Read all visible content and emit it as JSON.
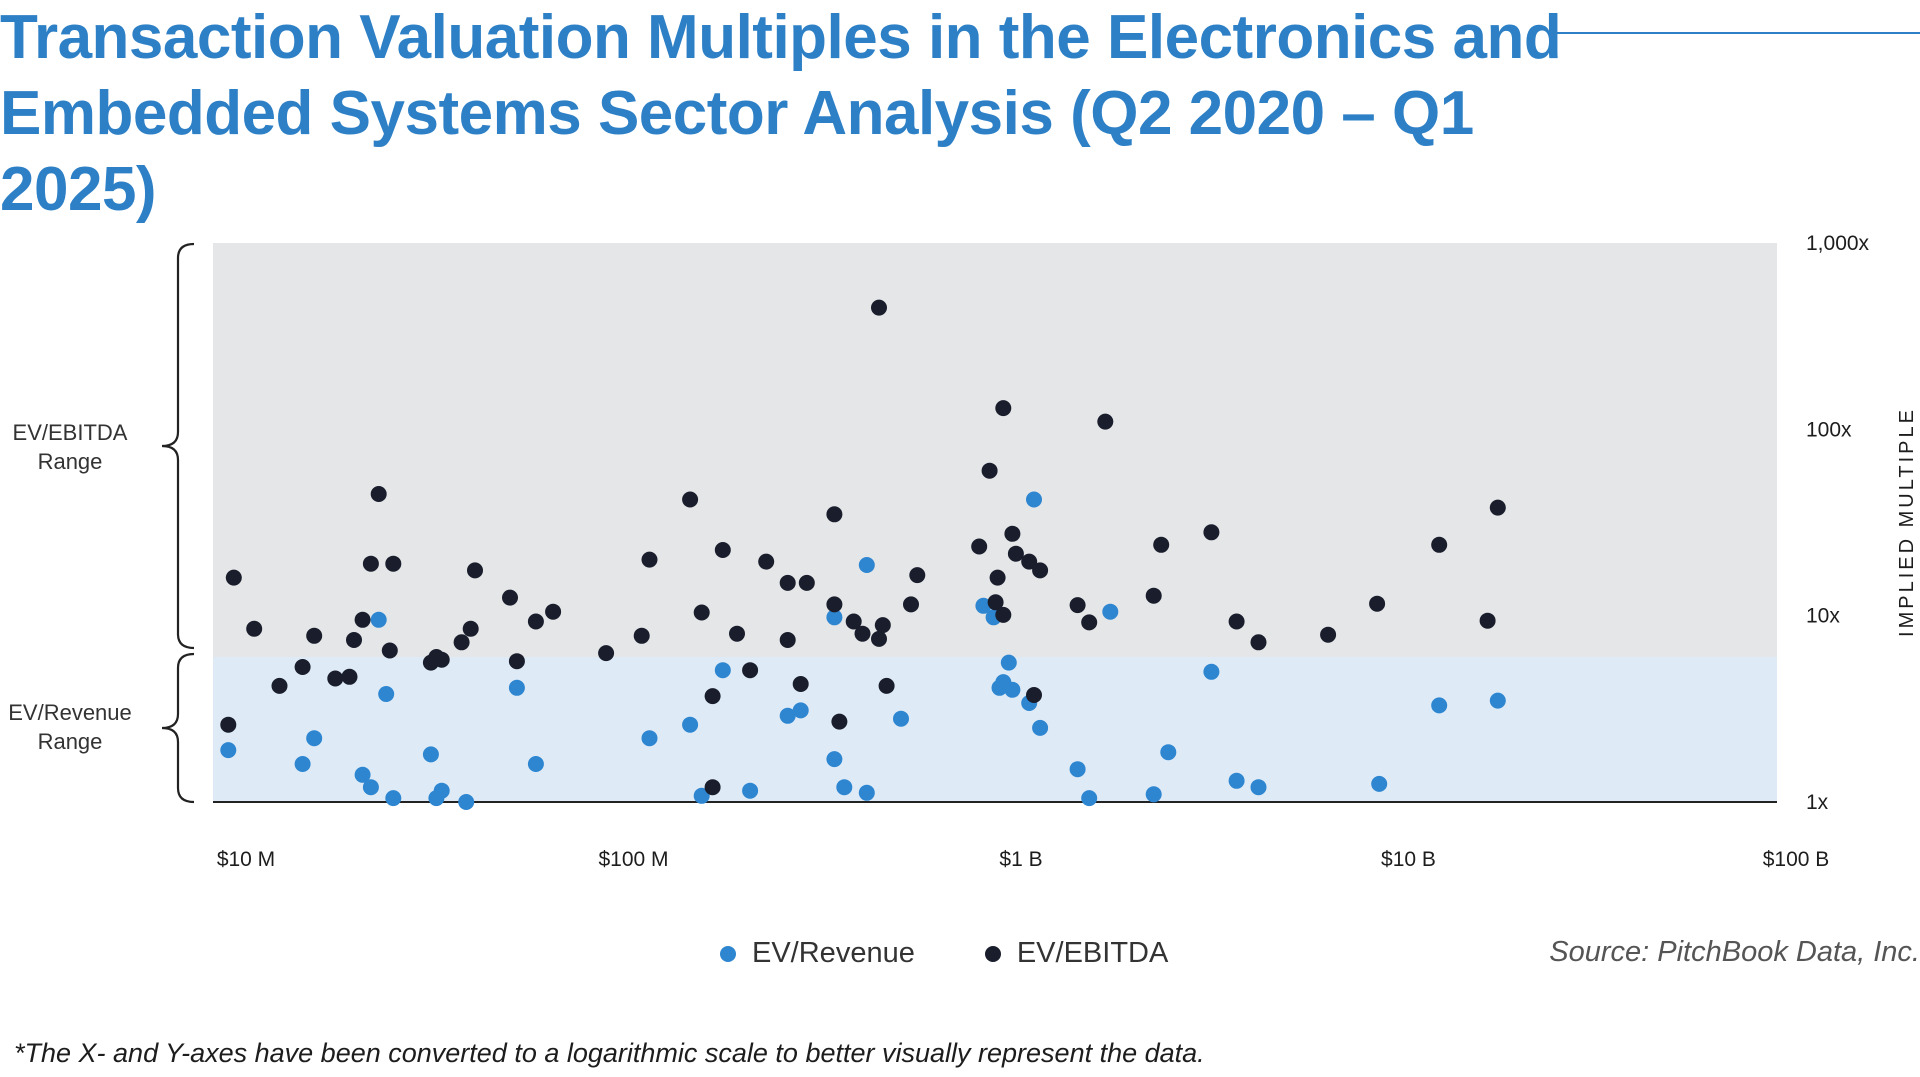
{
  "title": "Transaction Valuation Multiples in the Electronics and Embedded Systems Sector Analysis (Q2 2020 – Q1 2025)",
  "left_labels": {
    "ebitda_range": [
      "EV/EBITDA",
      "Range"
    ],
    "revenue_range": [
      "EV/Revenue",
      "Range"
    ]
  },
  "legend": {
    "revenue": "EV/Revenue",
    "ebitda": "EV/EBITDA"
  },
  "source": "Source: PitchBook Data, Inc.",
  "footnote": "*The X- and Y-axes have been converted to a logarithmic scale to better visually represent the data.",
  "colors": {
    "title": "#2E80C6",
    "revenue": "#2E86D1",
    "ebitda": "#1A1E2C",
    "ebitda_band": "#E5E6E8",
    "revenue_band": "#DEEBF7"
  },
  "chart_data": {
    "type": "scatter",
    "x_scale": "log",
    "y_scale": "log",
    "xlim": [
      10000000,
      100000000000
    ],
    "ylim": [
      1,
      1000
    ],
    "x_ticks": [
      {
        "value": 10000000,
        "label": "$10 M"
      },
      {
        "value": 100000000,
        "label": "$100 M"
      },
      {
        "value": 1000000000,
        "label": "$1 B"
      },
      {
        "value": 10000000000,
        "label": "$10 B"
      },
      {
        "value": 100000000000,
        "label": "$100 B"
      }
    ],
    "y_ticks": [
      {
        "value": 1000,
        "label": "1,000x"
      },
      {
        "value": 100,
        "label": "100x"
      },
      {
        "value": 10,
        "label": "10x"
      },
      {
        "value": 1,
        "label": "1x"
      }
    ],
    "ylabel": "IMPLIED MULTIPLE",
    "bands": {
      "revenue_max": 6
    },
    "series": [
      {
        "name": "EV/Revenue",
        "points": [
          [
            9000000,
            1.9
          ],
          [
            14000000,
            1.6
          ],
          [
            15000000,
            2.2
          ],
          [
            20000000,
            1.4
          ],
          [
            21000000,
            1.2
          ],
          [
            22000000,
            9.5
          ],
          [
            23000000,
            3.8
          ],
          [
            24000000,
            1.05
          ],
          [
            30000000,
            1.8
          ],
          [
            31000000,
            1.05
          ],
          [
            32000000,
            1.15
          ],
          [
            37000000,
            1.0
          ],
          [
            50000000,
            4.1
          ],
          [
            56000000,
            1.6
          ],
          [
            110000000,
            2.2
          ],
          [
            140000000,
            2.6
          ],
          [
            150000000,
            1.08
          ],
          [
            170000000,
            5.1
          ],
          [
            200000000,
            1.15
          ],
          [
            250000000,
            2.9
          ],
          [
            270000000,
            3.1
          ],
          [
            330000000,
            1.7
          ],
          [
            330000000,
            9.8
          ],
          [
            350000000,
            1.2
          ],
          [
            400000000,
            1.12
          ],
          [
            400000000,
            18.7
          ],
          [
            490000000,
            2.8
          ],
          [
            800000000,
            11.3
          ],
          [
            850000000,
            9.8
          ],
          [
            880000000,
            4.1
          ],
          [
            900000000,
            4.4
          ],
          [
            930000000,
            5.6
          ],
          [
            950000000,
            4.0
          ],
          [
            1050000000,
            3.4
          ],
          [
            1080000000,
            42
          ],
          [
            1120000000,
            2.5
          ],
          [
            1400000000,
            1.5
          ],
          [
            1500000000,
            1.05
          ],
          [
            1700000000,
            10.5
          ],
          [
            2200000000,
            1.1
          ],
          [
            2400000000,
            1.85
          ],
          [
            3100000000,
            5.0
          ],
          [
            3600000000,
            1.3
          ],
          [
            4100000000,
            1.2
          ],
          [
            8400000000,
            1.25
          ],
          [
            12000000000,
            3.3
          ],
          [
            17000000000,
            3.5
          ]
        ]
      },
      {
        "name": "EV/EBITDA",
        "points": [
          [
            9000000,
            2.6
          ],
          [
            9300000,
            16
          ],
          [
            10500000,
            8.5
          ],
          [
            12200000,
            4.2
          ],
          [
            14000000,
            5.3
          ],
          [
            15000000,
            7.8
          ],
          [
            17000000,
            4.6
          ],
          [
            18500000,
            4.7
          ],
          [
            19000000,
            7.4
          ],
          [
            20000000,
            9.5
          ],
          [
            21000000,
            19
          ],
          [
            22000000,
            45
          ],
          [
            23500000,
            6.5
          ],
          [
            24000000,
            19
          ],
          [
            30000000,
            5.6
          ],
          [
            31000000,
            6.0
          ],
          [
            32000000,
            5.8
          ],
          [
            36000000,
            7.2
          ],
          [
            38000000,
            8.5
          ],
          [
            39000000,
            17.5
          ],
          [
            48000000,
            12.5
          ],
          [
            50000000,
            5.7
          ],
          [
            56000000,
            9.3
          ],
          [
            62000000,
            10.5
          ],
          [
            85000000,
            6.3
          ],
          [
            105000000,
            7.8
          ],
          [
            110000000,
            20
          ],
          [
            140000000,
            42
          ],
          [
            150000000,
            10.4
          ],
          [
            160000000,
            1.2
          ],
          [
            160000000,
            3.7
          ],
          [
            170000000,
            22.5
          ],
          [
            185000000,
            8
          ],
          [
            200000000,
            5.1
          ],
          [
            220000000,
            19.5
          ],
          [
            250000000,
            7.4
          ],
          [
            250000000,
            15
          ],
          [
            270000000,
            4.3
          ],
          [
            280000000,
            15
          ],
          [
            330000000,
            35
          ],
          [
            330000000,
            11.5
          ],
          [
            340000000,
            2.7
          ],
          [
            370000000,
            9.3
          ],
          [
            390000000,
            8
          ],
          [
            430000000,
            7.5
          ],
          [
            430000000,
            450
          ],
          [
            440000000,
            8.9
          ],
          [
            450000000,
            4.2
          ],
          [
            520000000,
            11.5
          ],
          [
            540000000,
            16.5
          ],
          [
            780000000,
            23.5
          ],
          [
            830000000,
            60
          ],
          [
            860000000,
            11.8
          ],
          [
            870000000,
            16
          ],
          [
            900000000,
            10.1
          ],
          [
            900000000,
            130
          ],
          [
            950000000,
            27.5
          ],
          [
            970000000,
            21.5
          ],
          [
            1050000000,
            19.5
          ],
          [
            1080000000,
            3.75
          ],
          [
            1120000000,
            17.5
          ],
          [
            1400000000,
            11.4
          ],
          [
            1500000000,
            9.2
          ],
          [
            1650000000,
            110
          ],
          [
            2200000000,
            12.8
          ],
          [
            2300000000,
            24
          ],
          [
            3100000000,
            28
          ],
          [
            3600000000,
            9.3
          ],
          [
            4100000000,
            7.2
          ],
          [
            6200000000,
            7.9
          ],
          [
            8300000000,
            11.6
          ],
          [
            12000000000,
            24
          ],
          [
            16000000000,
            9.4
          ],
          [
            17000000000,
            38
          ]
        ]
      }
    ]
  }
}
